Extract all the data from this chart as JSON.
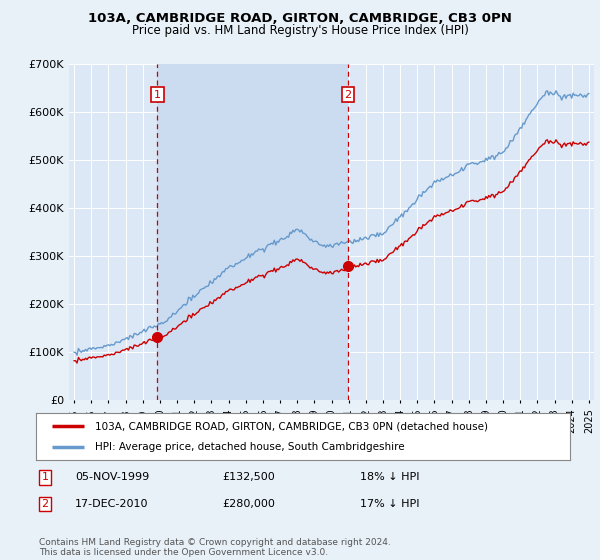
{
  "title": "103A, CAMBRIDGE ROAD, GIRTON, CAMBRIDGE, CB3 0PN",
  "subtitle": "Price paid vs. HM Land Registry's House Price Index (HPI)",
  "sale1_x": 1999.846,
  "sale1_price": 132500,
  "sale2_x": 2010.962,
  "sale2_price": 280000,
  "legend_entry1": "103A, CAMBRIDGE ROAD, GIRTON, CAMBRIDGE, CB3 0PN (detached house)",
  "legend_entry2": "HPI: Average price, detached house, South Cambridgeshire",
  "footnote": "Contains HM Land Registry data © Crown copyright and database right 2024.\nThis data is licensed under the Open Government Licence v3.0.",
  "bg_color": "#e8f0f8",
  "plot_bg_color": "#dce8f5",
  "shade_color": "#ccdcf0",
  "red_color": "#cc0000",
  "blue_color": "#6699cc",
  "vline_color": "#cc0000",
  "ylim": [
    0,
    700000
  ],
  "xlim_start": 1994.7,
  "xlim_end": 2025.3,
  "yticks": [
    0,
    100000,
    200000,
    300000,
    400000,
    500000,
    600000,
    700000
  ]
}
